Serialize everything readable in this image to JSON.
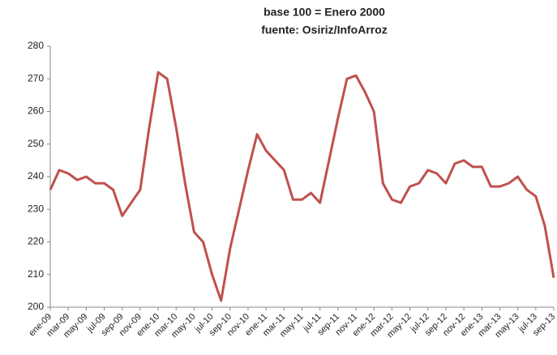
{
  "chart_data": {
    "type": "line",
    "title": "base 100 = Enero 2000",
    "subtitle": "fuente: Osiriz/InfoArroz",
    "categories": [
      "ene-09",
      null,
      "mar-09",
      null,
      "may-09",
      null,
      "jul-09",
      null,
      "sep-09",
      null,
      "nov-09",
      null,
      "ene-10",
      null,
      "mar-10",
      null,
      "may-10",
      null,
      "jul-10",
      null,
      "sep-10",
      null,
      "nov-10",
      null,
      "ene-11",
      null,
      "mar-11",
      null,
      "may-11",
      null,
      "jul-11",
      null,
      "sep-11",
      null,
      "nov-11",
      null,
      "ene-12",
      null,
      "mar-12",
      null,
      "may-12",
      null,
      "jul-12",
      null,
      "sep-12",
      null,
      "nov-12",
      null,
      "ene-13",
      null,
      "mar-13",
      null,
      "may-13",
      null,
      "jul-13",
      null,
      "sep-13"
    ],
    "values": [
      236,
      242,
      241,
      239,
      240,
      238,
      238,
      236,
      228,
      232,
      236,
      255,
      272,
      270,
      255,
      238,
      223,
      220,
      210,
      202,
      218,
      230,
      242,
      253,
      248,
      245,
      242,
      233,
      233,
      235,
      232,
      245,
      258,
      270,
      271,
      266,
      260,
      238,
      233,
      232,
      237,
      238,
      242,
      241,
      238,
      244,
      245,
      243,
      243,
      237,
      237,
      238,
      240,
      236,
      234,
      225,
      209
    ],
    "color": "#c0504d",
    "ylim": [
      200,
      280
    ],
    "yticks": [
      200,
      210,
      220,
      230,
      240,
      250,
      260,
      270,
      280
    ],
    "grid": false
  }
}
